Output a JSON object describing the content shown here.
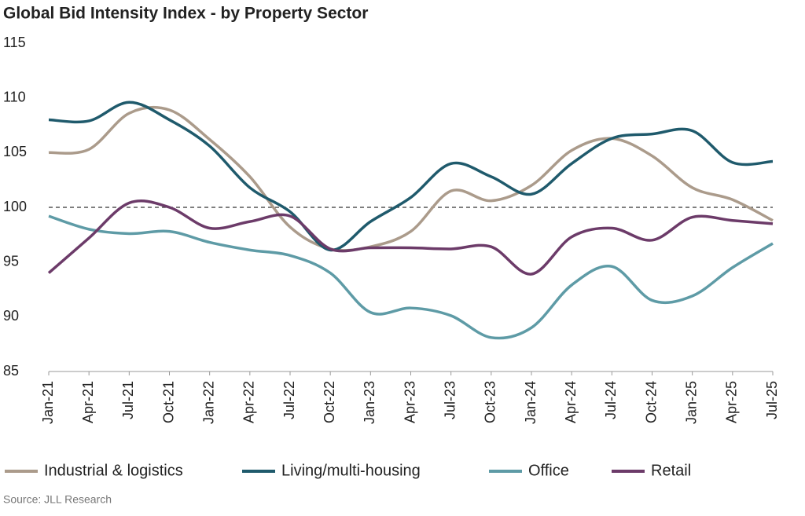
{
  "chart_data": {
    "type": "line",
    "title": "Global Bid Intensity Index - by Property Sector",
    "source": "Source: JLL Research",
    "categories": [
      "Jan-21",
      "Apr-21",
      "Jul-21",
      "Oct-21",
      "Jan-22",
      "Apr-22",
      "Jul-22",
      "Oct-22",
      "Jan-23",
      "Apr-23",
      "Jul-23",
      "Oct-23",
      "Jan-24",
      "Apr-24",
      "Jul-24",
      "Oct-24",
      "Jan-25",
      "Apr-25",
      "Jul-25"
    ],
    "series": [
      {
        "name": "Industrial & logistics",
        "color": "#ab9b8b",
        "values": [
          105.0,
          105.3,
          108.6,
          108.9,
          106.2,
          102.8,
          98.2,
          96.2,
          96.4,
          97.8,
          101.5,
          100.6,
          102.0,
          105.2,
          106.3,
          104.7,
          101.8,
          100.7,
          98.8
        ]
      },
      {
        "name": "Living/multi-housing",
        "color": "#1f5a6c",
        "values": [
          108.0,
          107.9,
          109.6,
          108.0,
          105.6,
          101.8,
          99.6,
          96.1,
          98.7,
          100.9,
          104.0,
          102.8,
          101.2,
          104.0,
          106.3,
          106.7,
          107.0,
          104.1,
          104.2
        ]
      },
      {
        "name": "Office",
        "color": "#5e9ba6",
        "values": [
          99.2,
          98.0,
          97.6,
          97.8,
          96.8,
          96.1,
          95.6,
          94.0,
          90.4,
          90.8,
          90.1,
          88.1,
          89.0,
          92.9,
          94.6,
          91.5,
          91.9,
          94.5,
          96.7
        ]
      },
      {
        "name": "Retail",
        "color": "#6c3b69",
        "values": [
          94.0,
          97.2,
          100.4,
          100.0,
          98.1,
          98.7,
          99.2,
          96.2,
          96.3,
          96.3,
          96.2,
          96.4,
          93.9,
          97.3,
          98.1,
          97.0,
          99.1,
          98.8,
          98.5
        ]
      }
    ],
    "reference_line": 100,
    "ylim": [
      85,
      115
    ],
    "yticks": [
      85,
      90,
      95,
      100,
      105,
      110,
      115
    ],
    "grid": false,
    "legend": "bottom"
  }
}
